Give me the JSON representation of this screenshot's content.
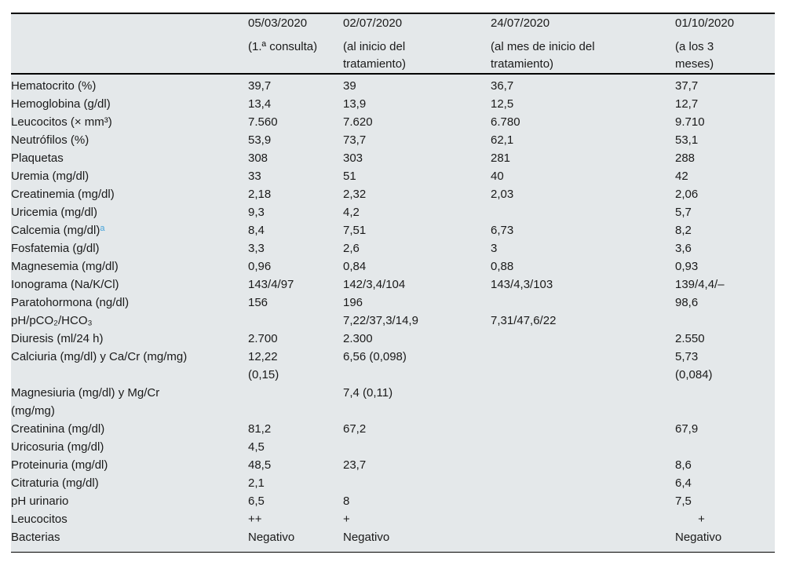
{
  "table": {
    "footnote_marker_color": "#45a3d9",
    "columns": [
      {
        "date": "05/03/2020",
        "note": "(1.ª consulta)"
      },
      {
        "date": "02/07/2020",
        "note": "(al inicio del\ntratamiento)"
      },
      {
        "date": "24/07/2020",
        "note": "(al mes de inicio del\ntratamiento)"
      },
      {
        "date": "01/10/2020",
        "note": "(a los 3\nmeses)"
      }
    ],
    "rows": [
      {
        "label": "Hematocrito (%)",
        "values": [
          "39,7",
          "39",
          "36,7",
          "37,7"
        ]
      },
      {
        "label": "Hemoglobina (g/dl)",
        "values": [
          "13,4",
          "13,9",
          "12,5",
          "12,7"
        ]
      },
      {
        "label": "Leucocitos (× mm³)",
        "values": [
          "7.560",
          "7.620",
          "6.780",
          "9.710"
        ]
      },
      {
        "label": "Neutrófilos (%)",
        "values": [
          "53,9",
          "73,7",
          "62,1",
          "53,1"
        ]
      },
      {
        "label": "Plaquetas",
        "values": [
          "308",
          "303",
          "281",
          "288"
        ]
      },
      {
        "label": "Uremia (mg/dl)",
        "values": [
          "33",
          "51",
          "40",
          "42"
        ]
      },
      {
        "label": "Creatinemia (mg/dl)",
        "values": [
          "2,18",
          "2,32",
          "2,03",
          "2,06"
        ]
      },
      {
        "label": "Uricemia (mg/dl)",
        "values": [
          "9,3",
          "4,2",
          "",
          "5,7"
        ]
      },
      {
        "label": "Calcemia (mg/dl)",
        "label_sup": "a",
        "values": [
          "8,4",
          "7,51",
          "6,73",
          "8,2"
        ]
      },
      {
        "label": "Fosfatemia (g/dl)",
        "values": [
          "3,3",
          "2,6",
          "3",
          "3,6"
        ]
      },
      {
        "label": "Magnesemia (mg/dl)",
        "values": [
          "0,96",
          "0,84",
          "0,88",
          "0,93"
        ]
      },
      {
        "label": "Ionograma (Na/K/Cl)",
        "values": [
          "143/4/97",
          "142/3,4/104",
          "143/4,3/103",
          "139/4,4/–"
        ]
      },
      {
        "label": "Paratohormona (ng/dl)",
        "values": [
          "156",
          "196",
          "",
          "98,6"
        ]
      },
      {
        "label": "pH/pCO₂/HCO₃",
        "values": [
          "",
          "7,22/37,3/14,9",
          "7,31/47,6/22",
          ""
        ]
      },
      {
        "label": "Diuresis (ml/24 h)",
        "values": [
          "2.700",
          "2.300",
          "",
          "2.550"
        ]
      },
      {
        "label": "Calciuria (mg/dl) y Ca/Cr (mg/mg)",
        "values": [
          "12,22\n(0,15)",
          "6,56 (0,098)",
          "",
          "5,73\n(0,084)"
        ]
      },
      {
        "label": "Magnesiuria (mg/dl) y Mg/Cr\n(mg/mg)",
        "values": [
          "",
          "7,4 (0,11)",
          "",
          ""
        ]
      },
      {
        "label": "Creatinina (mg/dl)",
        "values": [
          "81,2",
          "67,2",
          "",
          "67,9"
        ]
      },
      {
        "label": "Uricosuria (mg/dl)",
        "values": [
          "4,5",
          "",
          "",
          ""
        ]
      },
      {
        "label": "Proteinuria (mg/dl)",
        "values": [
          "48,5",
          "23,7",
          "",
          "8,6"
        ]
      },
      {
        "label": "Citraturia (mg/dl)",
        "values": [
          "2,1",
          "",
          "",
          "6,4"
        ]
      },
      {
        "label": "pH urinario",
        "values": [
          "6,5",
          "8",
          "",
          "7,5"
        ]
      },
      {
        "label": "Leucocitos",
        "values": [
          "++",
          "+",
          "",
          "       +"
        ]
      },
      {
        "label": "Bacterias",
        "values": [
          "Negativo",
          "Negativo",
          "",
          "Negativo"
        ]
      }
    ]
  }
}
